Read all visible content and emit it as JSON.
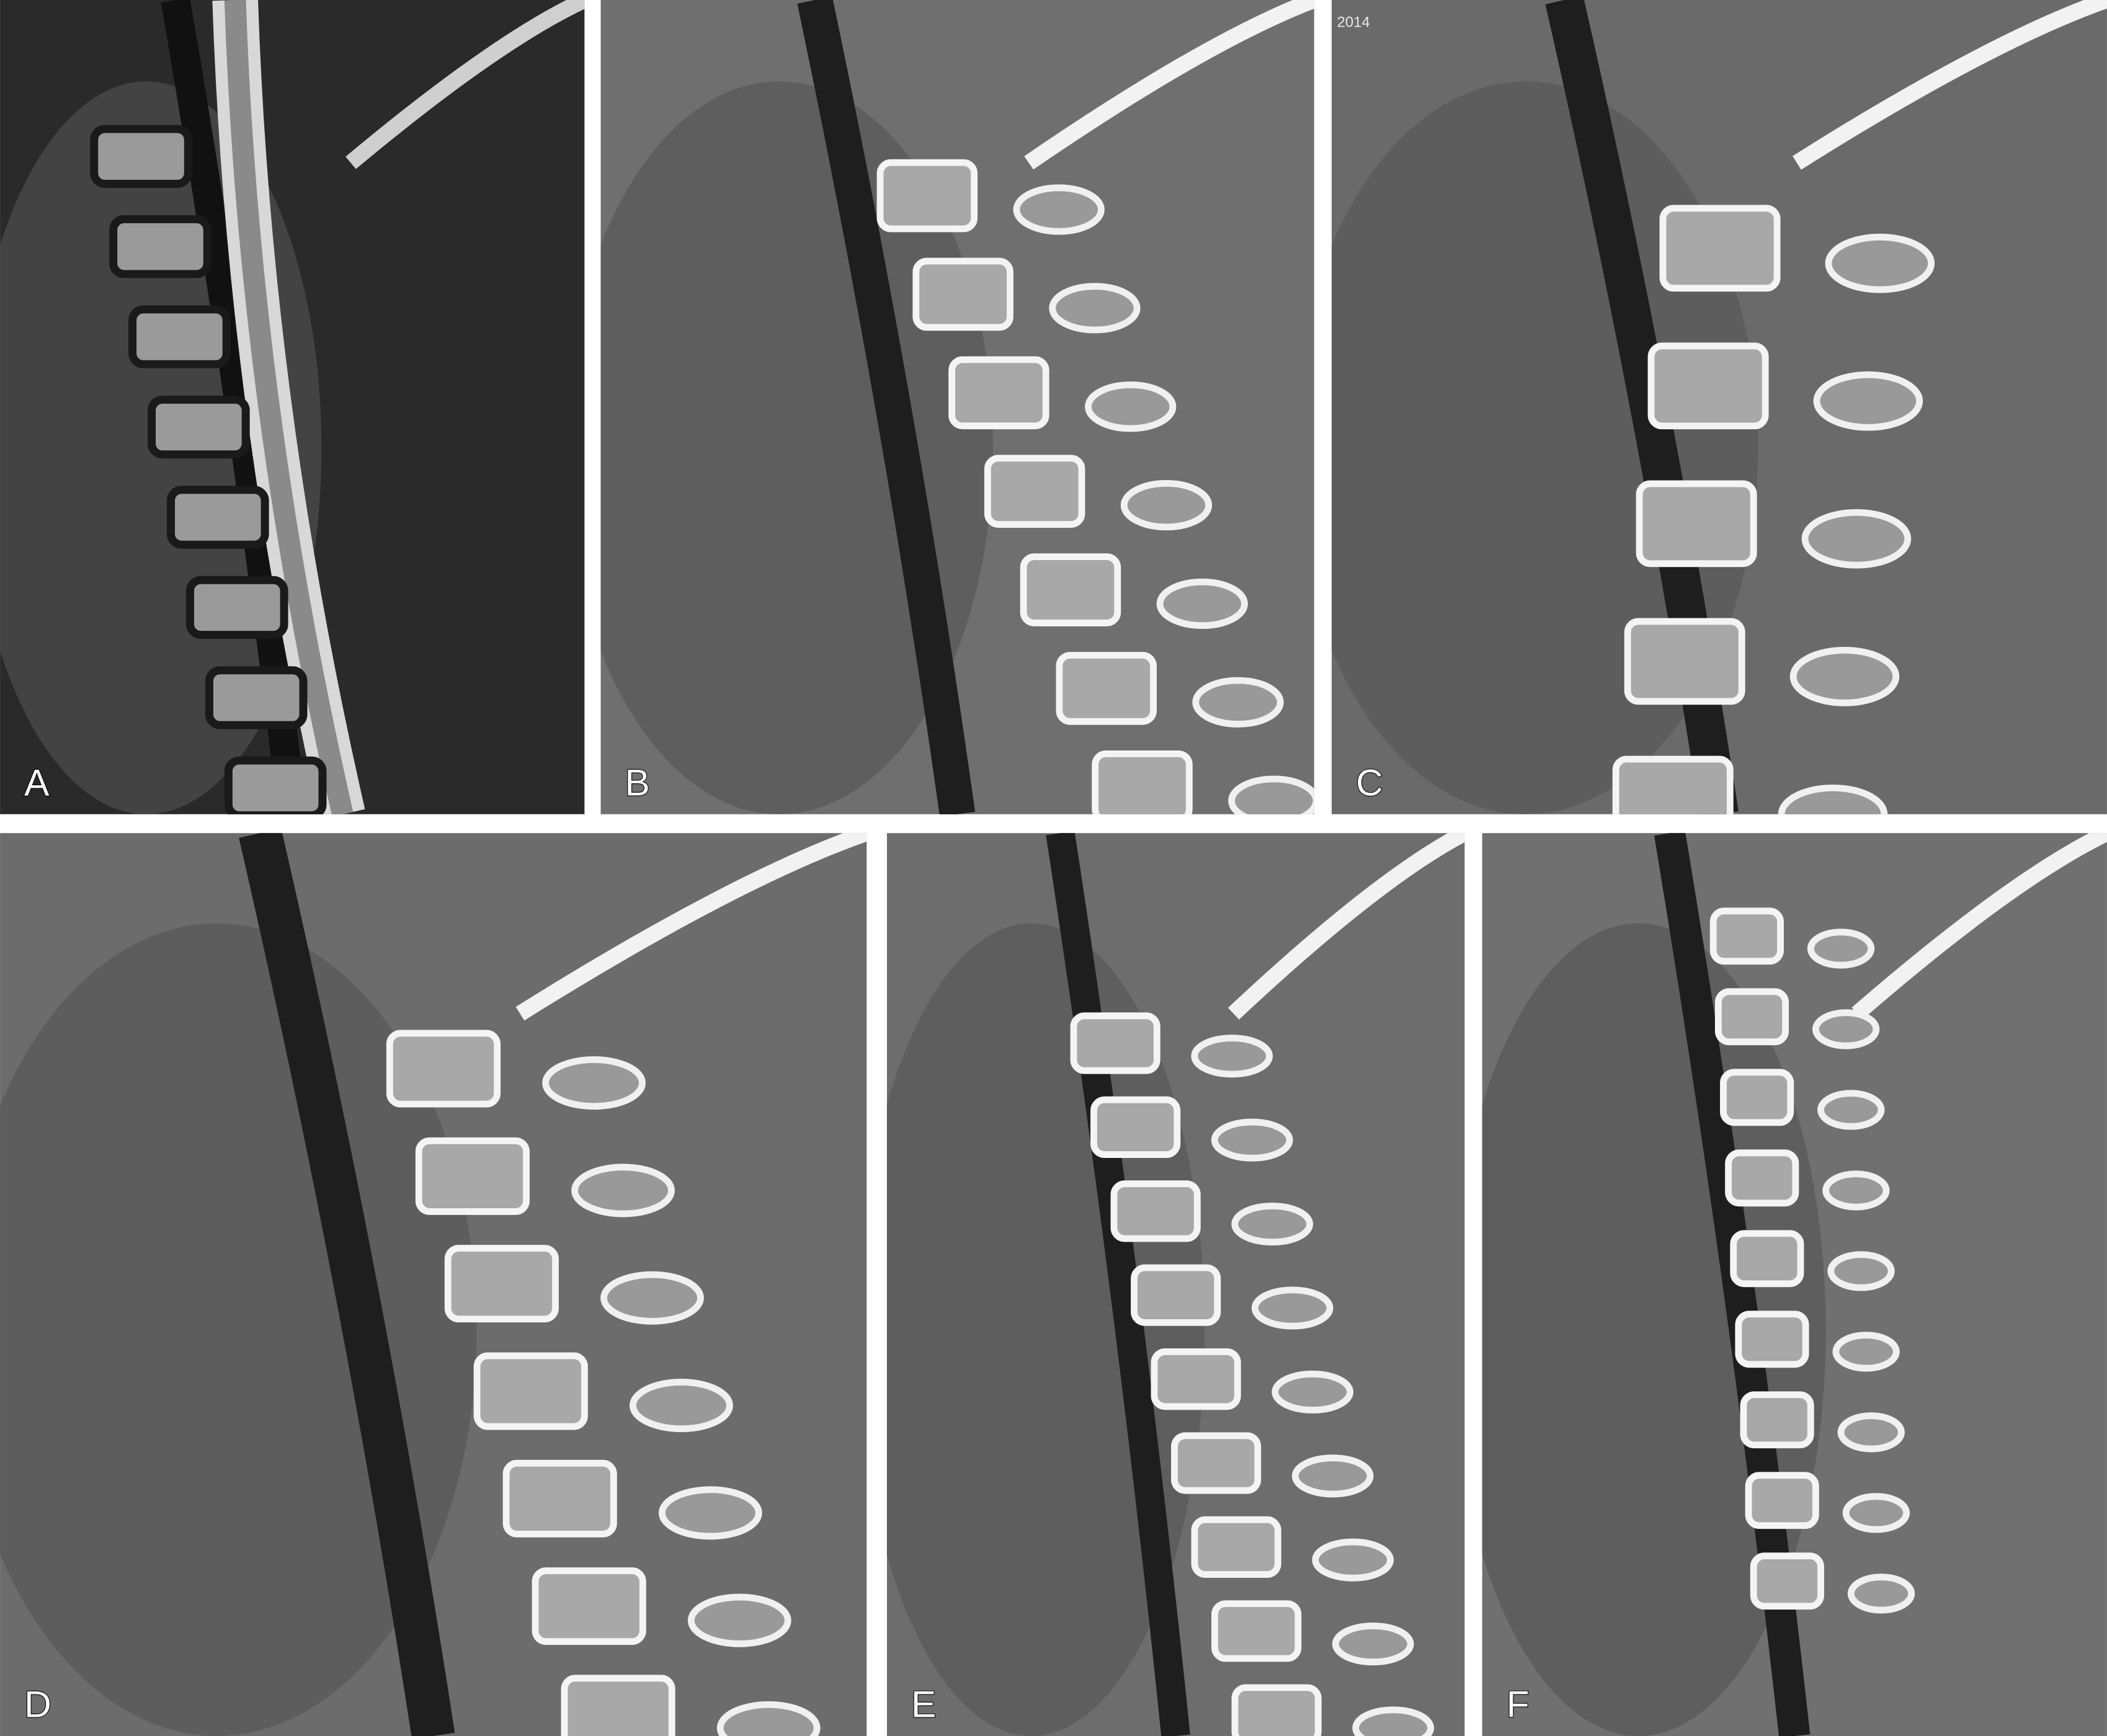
{
  "panels": [
    {
      "label": "A"
    },
    {
      "label": "B"
    },
    {
      "label": "C",
      "overlay": "2014"
    },
    {
      "label": "D"
    },
    {
      "label": "E"
    },
    {
      "label": "F"
    }
  ]
}
